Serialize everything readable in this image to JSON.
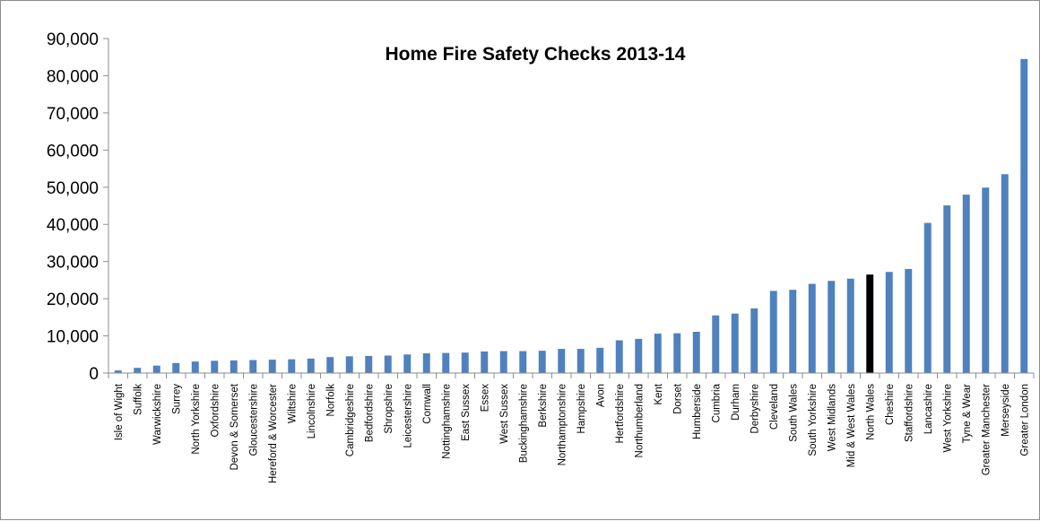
{
  "chart_data": {
    "type": "bar",
    "title": "Home Fire Safety Checks 2013-14",
    "xlabel": "",
    "ylabel": "",
    "ylim": [
      0,
      90000
    ],
    "yticks": [
      0,
      10000,
      20000,
      30000,
      40000,
      50000,
      60000,
      70000,
      80000,
      90000
    ],
    "ytick_labels": [
      "0",
      "10,000",
      "20,000",
      "30,000",
      "40,000",
      "50,000",
      "60,000",
      "70,000",
      "80,000",
      "90,000"
    ],
    "grid": false,
    "legend": "none",
    "colors": {
      "bar": "#4f81bd",
      "highlight": "#000000"
    },
    "highlight_category": "North Wales",
    "categories": [
      "Isle of Wight",
      "Suffolk",
      "Warwickshire",
      "Surrey",
      "North Yorkshire",
      "Oxfordshire",
      "Devon & Somerset",
      "Gloucestershire",
      "Hereford & Worcester",
      "Wiltshire",
      "Lincolnshire",
      "Norfolk",
      "Cambridgeshire",
      "Bedfordshire",
      "Shropshire",
      "Leicestershire",
      "Cornwall",
      "Nottinghamshire",
      "East Sussex",
      "Essex",
      "West Sussex",
      "Buckinghamshire",
      "Berkshire",
      "Northamptonshire",
      "Hampshire",
      "Avon",
      "Hertfordshire",
      "Northumberland",
      "Kent",
      "Dorset",
      "Humberside",
      "Cumbria",
      "Durham",
      "Derbyshire",
      "Cleveland",
      "South Wales",
      "South Yorkshire",
      "West Midlands",
      "Mid & West Wales",
      "North Wales",
      "Cheshire",
      "Staffordshire",
      "Lancashire",
      "West Yorkshire",
      "Tyne & Wear",
      "Greater Manchester",
      "Merseyside",
      "Greater London"
    ],
    "values": [
      700,
      1400,
      2000,
      2700,
      3100,
      3300,
      3400,
      3500,
      3600,
      3700,
      3900,
      4300,
      4500,
      4600,
      4700,
      5000,
      5300,
      5400,
      5500,
      5800,
      5900,
      5900,
      6000,
      6500,
      6500,
      6800,
      8800,
      9200,
      10600,
      10700,
      11100,
      15500,
      16000,
      17400,
      22100,
      22400,
      24000,
      24800,
      25400,
      26500,
      27200,
      28000,
      40400,
      45100,
      48000,
      49900,
      53500,
      84500
    ]
  }
}
